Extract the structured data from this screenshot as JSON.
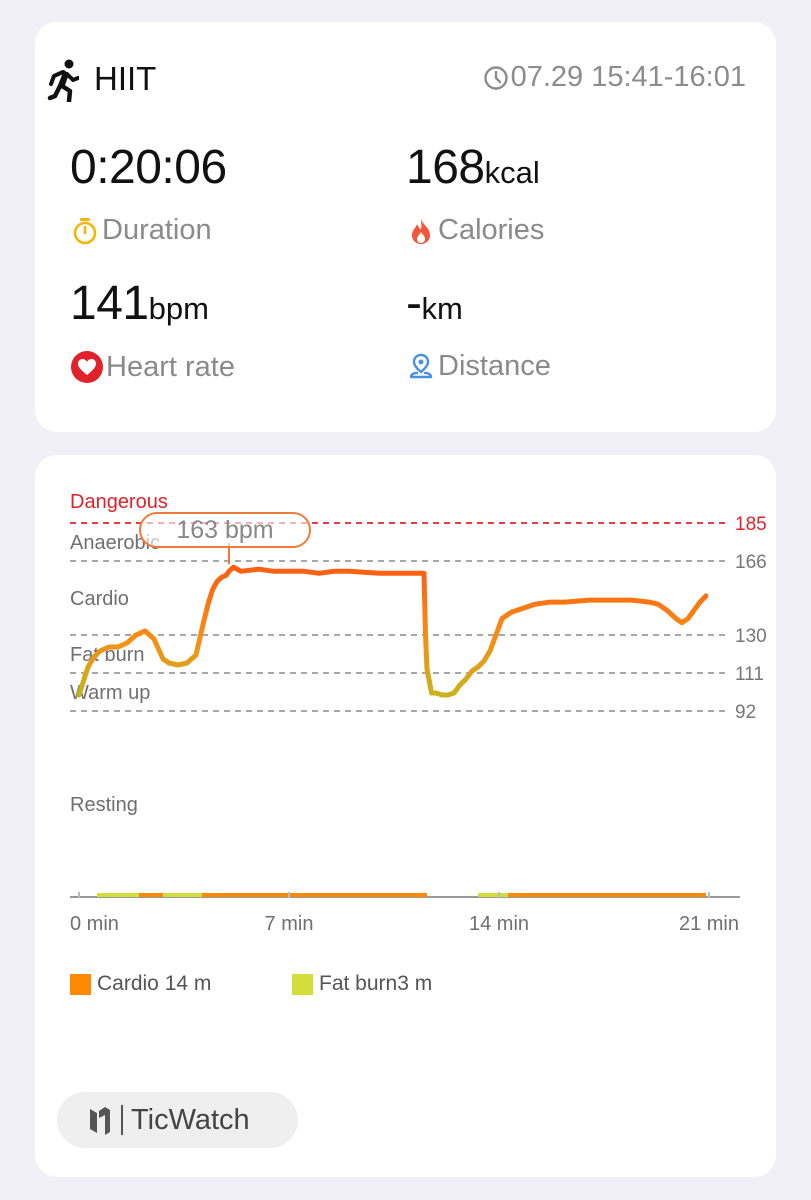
{
  "activity": {
    "title": "HIIT",
    "time_range": "07.29 15:41-16:01",
    "icon": "running-figure-icon"
  },
  "stats": {
    "duration": {
      "value": "0:20:06",
      "label": "Duration",
      "icon": "stopwatch-icon"
    },
    "calories": {
      "value": "168",
      "unit": "kcal",
      "label": "Calories",
      "icon": "flame-icon"
    },
    "heart_rate": {
      "value": "141",
      "unit": "bpm",
      "label": "Heart rate",
      "icon": "heart-icon"
    },
    "distance": {
      "value": "-",
      "unit": "km",
      "label": "Distance",
      "icon": "location-pin-icon"
    }
  },
  "colors": {
    "accent_orange": "#ff8a00",
    "line_orange": "#fb6a12",
    "fat_burn_yellow": "#d4de3a",
    "danger_red": "#e0222c",
    "stopwatch_yellow": "#f2b705",
    "distance_blue": "#4a90e2"
  },
  "chart_data": {
    "type": "line",
    "zones": [
      {
        "name": "Dangerous",
        "min": 185
      },
      {
        "name": "Anaerobic",
        "min": 166
      },
      {
        "name": "Cardio",
        "min": 130
      },
      {
        "name": "Fat burn",
        "min": 111
      },
      {
        "name": "Warm up",
        "min": 92
      },
      {
        "name": "Resting",
        "min": 0
      }
    ],
    "thresholds": [
      185,
      166,
      130,
      111,
      92
    ],
    "x_ticks": [
      "0 min",
      "7 min",
      "14 min",
      "21 min"
    ],
    "x_tick_values": [
      0,
      7,
      14,
      21
    ],
    "xlim": [
      0,
      21
    ],
    "x_unit": "min",
    "y_unit": "bpm",
    "peak": {
      "label": "163 bpm",
      "x": 5.0,
      "y": 163
    },
    "series": [
      {
        "x": [
          0.0,
          0.15,
          0.3,
          0.5,
          0.7,
          1.0,
          1.3,
          1.6,
          1.9,
          2.2,
          2.5,
          2.8,
          3.0,
          3.3,
          3.6,
          3.9,
          4.1,
          4.3,
          4.45,
          4.6,
          4.75,
          4.9,
          5.0,
          5.15,
          5.4,
          6.0,
          6.5,
          7.0,
          7.5,
          8.0,
          8.5,
          9.0,
          10.0,
          11.0,
          11.5,
          11.55,
          11.6,
          11.75,
          11.9,
          12.1,
          12.3,
          12.5,
          12.7,
          12.9,
          13.1,
          13.3,
          13.5,
          13.7,
          13.9,
          14.1,
          14.4,
          14.8,
          15.2,
          15.7,
          16.2,
          17.0,
          17.7,
          18.4,
          19.0,
          19.3,
          19.6,
          19.9,
          20.1,
          20.3,
          20.5,
          20.7,
          20.9
        ],
        "y": [
          100,
          107,
          114,
          119,
          122,
          124,
          124,
          126,
          130,
          132,
          128,
          118,
          116,
          115,
          116,
          120,
          133,
          145,
          152,
          156,
          158,
          159,
          161,
          163,
          161,
          162,
          161,
          161,
          161,
          160,
          161,
          161,
          160,
          160,
          160,
          130,
          113,
          101,
          101,
          100,
          100,
          101,
          105,
          108,
          112,
          114,
          117,
          122,
          130,
          138,
          141,
          143,
          145,
          146,
          146,
          147,
          147,
          147,
          146,
          145,
          142,
          138,
          136,
          138,
          142,
          146,
          149
        ]
      }
    ],
    "zone_bar": {
      "segments": [
        {
          "zone": "Fat burn",
          "from": 0.6,
          "to": 2.0
        },
        {
          "zone": "Cardio",
          "from": 2.0,
          "to": 2.8
        },
        {
          "zone": "Fat burn",
          "from": 2.8,
          "to": 4.1
        },
        {
          "zone": "Cardio",
          "from": 4.1,
          "to": 11.6
        },
        {
          "zone": "Fat burn",
          "from": 13.3,
          "to": 14.3
        },
        {
          "zone": "Cardio",
          "from": 14.3,
          "to": 20.9
        }
      ]
    },
    "legend": [
      {
        "zone": "Cardio",
        "label": "Cardio 14 m",
        "color": "#ff8a00"
      },
      {
        "zone": "Fat burn",
        "label": "Fat burn3 m",
        "color": "#d4de3a"
      }
    ]
  },
  "brand": {
    "name": "TicWatch",
    "icon": "ticwatch-logo-icon"
  }
}
